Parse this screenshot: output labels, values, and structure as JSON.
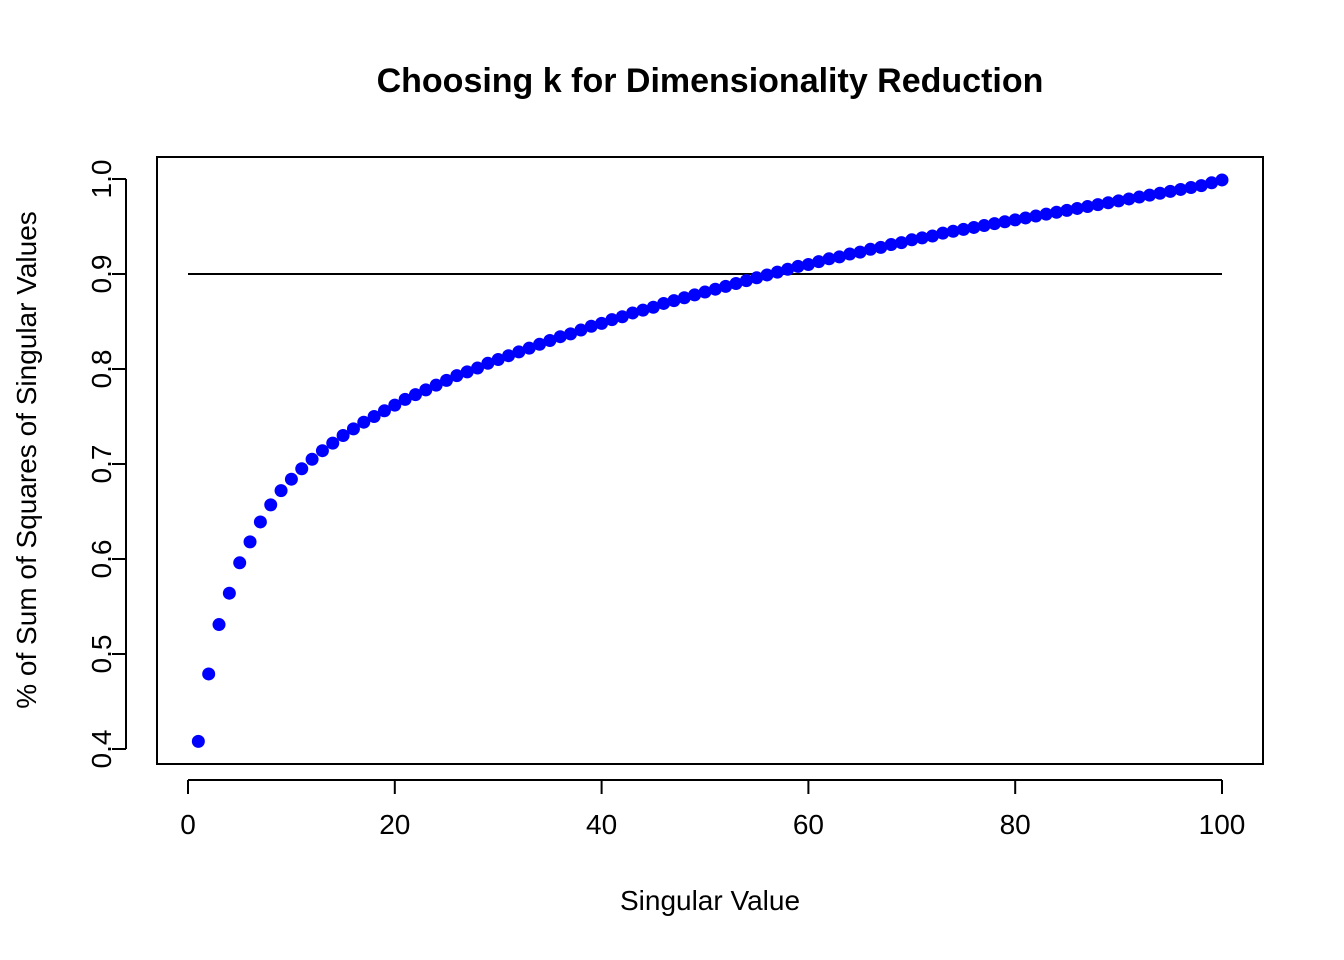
{
  "chart_data": {
    "type": "scatter",
    "title": "Choosing k for Dimensionality Reduction",
    "xlabel": "Singular Value",
    "ylabel": "% of Sum of Squares of Singular Values",
    "xlim": [
      0,
      100
    ],
    "ylim": [
      0.4,
      1.0
    ],
    "x_ticks": [
      "0",
      "20",
      "40",
      "60",
      "80",
      "100"
    ],
    "y_ticks": [
      "0.4",
      "0.5",
      "0.6",
      "0.7",
      "0.8",
      "0.9",
      "1.0"
    ],
    "grid": false,
    "legend": "none",
    "point_color": "#0000ff",
    "reference_line": {
      "y": 0.9,
      "x_from": 0,
      "x_to": 100,
      "color": "#000000"
    },
    "x": [
      1,
      2,
      3,
      4,
      5,
      6,
      7,
      8,
      9,
      10,
      11,
      12,
      13,
      14,
      15,
      16,
      17,
      18,
      19,
      20,
      21,
      22,
      23,
      24,
      25,
      26,
      27,
      28,
      29,
      30,
      31,
      32,
      33,
      34,
      35,
      36,
      37,
      38,
      39,
      40,
      41,
      42,
      43,
      44,
      45,
      46,
      47,
      48,
      49,
      50,
      51,
      52,
      53,
      54,
      55,
      56,
      57,
      58,
      59,
      60,
      61,
      62,
      63,
      64,
      65,
      66,
      67,
      68,
      69,
      70,
      71,
      72,
      73,
      74,
      75,
      76,
      77,
      78,
      79,
      80,
      81,
      82,
      83,
      84,
      85,
      86,
      87,
      88,
      89,
      90,
      91,
      92,
      93,
      94,
      95,
      96,
      97,
      98,
      99,
      100
    ],
    "y": [
      0.408,
      0.479,
      0.531,
      0.564,
      0.596,
      0.618,
      0.639,
      0.657,
      0.672,
      0.684,
      0.695,
      0.705,
      0.714,
      0.722,
      0.73,
      0.737,
      0.744,
      0.75,
      0.756,
      0.762,
      0.768,
      0.773,
      0.778,
      0.783,
      0.788,
      0.793,
      0.797,
      0.801,
      0.806,
      0.81,
      0.814,
      0.818,
      0.822,
      0.826,
      0.83,
      0.834,
      0.837,
      0.841,
      0.845,
      0.848,
      0.852,
      0.855,
      0.859,
      0.862,
      0.865,
      0.869,
      0.872,
      0.875,
      0.878,
      0.881,
      0.884,
      0.887,
      0.89,
      0.893,
      0.896,
      0.899,
      0.902,
      0.905,
      0.908,
      0.91,
      0.913,
      0.916,
      0.918,
      0.921,
      0.923,
      0.926,
      0.928,
      0.931,
      0.933,
      0.936,
      0.938,
      0.94,
      0.943,
      0.945,
      0.947,
      0.949,
      0.951,
      0.953,
      0.955,
      0.957,
      0.959,
      0.961,
      0.963,
      0.965,
      0.967,
      0.969,
      0.971,
      0.973,
      0.975,
      0.977,
      0.979,
      0.981,
      0.983,
      0.985,
      0.987,
      0.989,
      0.991,
      0.993,
      0.996,
      0.999
    ]
  }
}
